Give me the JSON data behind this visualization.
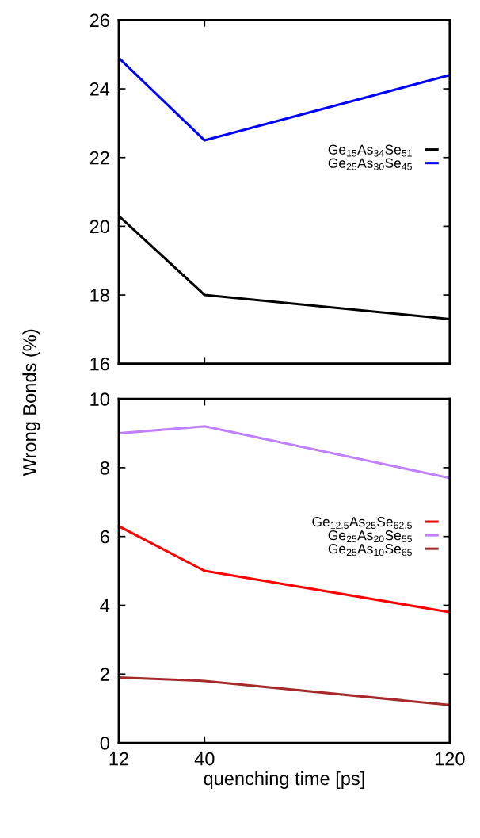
{
  "chart_data": [
    {
      "type": "line",
      "ylabel": "Wrong Bonds (%)",
      "x": [
        12,
        40,
        120
      ],
      "xlim": [
        12,
        120
      ],
      "xticks": [
        12,
        40,
        120
      ],
      "ylim": [
        16,
        26
      ],
      "yticks": [
        16,
        18,
        20,
        22,
        24,
        26
      ],
      "tick_labels": "y",
      "legend": "right",
      "grid": false,
      "series": [
        {
          "name": "Ge$_{15}$As$_{34}$Se$_{51}$",
          "color": "#000000",
          "values": [
            20.3,
            18.0,
            17.3
          ]
        },
        {
          "name": "Ge$_{25}$As$_{30}$Se$_{45}$",
          "color": "#0000ff",
          "values": [
            24.9,
            22.5,
            24.4
          ]
        }
      ]
    },
    {
      "type": "line",
      "xlabel": "quenching time [ps]",
      "x": [
        12,
        40,
        120
      ],
      "xlim": [
        12,
        120
      ],
      "xticks": [
        12,
        40,
        120
      ],
      "ylim": [
        0,
        10
      ],
      "yticks": [
        0,
        2,
        4,
        6,
        8,
        10
      ],
      "legend": "right",
      "grid": false,
      "series": [
        {
          "name": "Ge$_{12.5}$As$_{25}$Se$_{62.5}$",
          "color": "#ff0000",
          "values": [
            6.3,
            5.0,
            3.8
          ]
        },
        {
          "name": "Ge$_{25}$As$_{20}$Se$_{55}$",
          "color": "#c080ff",
          "values": [
            9.0,
            9.2,
            7.7
          ]
        },
        {
          "name": "Ge$_{25}$As$_{10}$Se$_{65}$",
          "color": "#a52a2a",
          "values": [
            1.9,
            1.8,
            1.1
          ]
        }
      ]
    }
  ]
}
